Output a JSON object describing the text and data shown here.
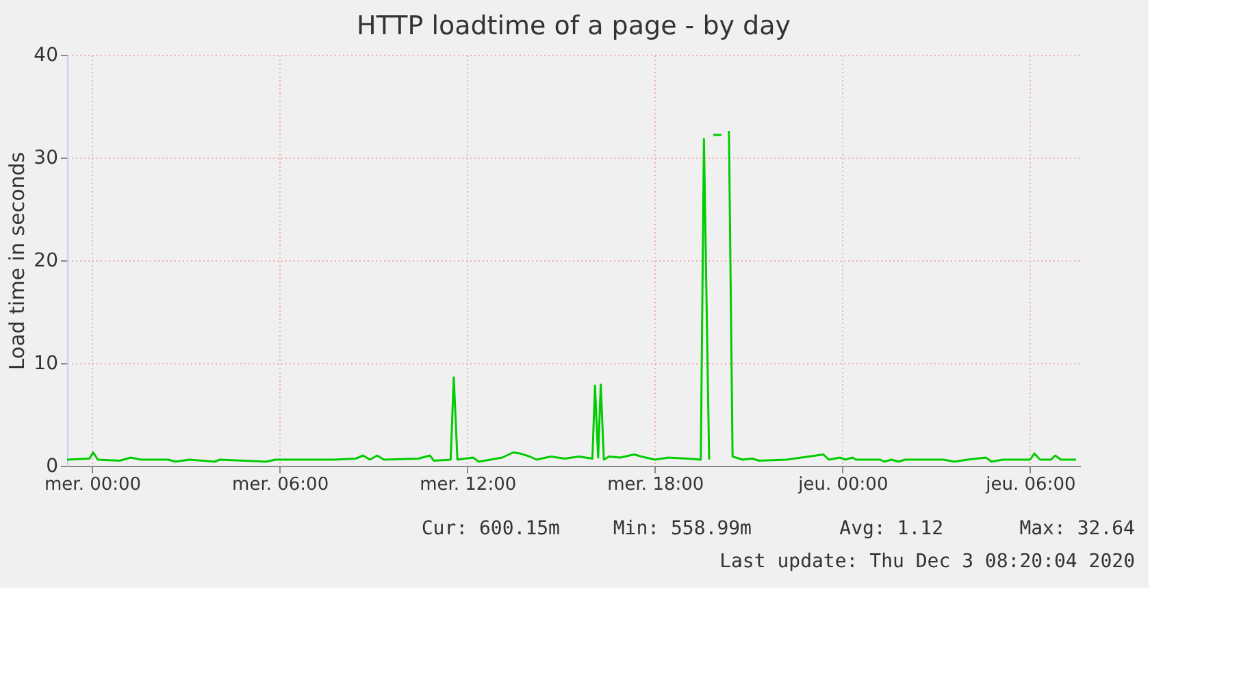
{
  "chart_data": {
    "type": "line",
    "title": "HTTP loadtime of a page - by day",
    "ylabel": "Load time in seconds",
    "x": [
      "2020-12-01T23:12",
      "2020-12-01T23:55",
      "2020-12-02T00:02",
      "2020-12-02T00:11",
      "2020-12-02T00:53",
      "2020-12-02T01:14",
      "2020-12-02T01:34",
      "2020-12-02T02:26",
      "2020-12-02T02:40",
      "2020-12-02T03:07",
      "2020-12-02T03:55",
      "2020-12-02T04:05",
      "2020-12-02T05:34",
      "2020-12-02T05:52",
      "2020-12-02T07:44",
      "2020-12-02T08:26",
      "2020-12-02T08:40",
      "2020-12-02T08:53",
      "2020-12-02T09:07",
      "2020-12-02T09:20",
      "2020-12-02T10:26",
      "2020-12-02T10:48",
      "2020-12-02T10:56",
      "2020-12-02T11:28",
      "2020-12-02T11:34",
      "2020-12-02T11:41",
      "2020-12-02T12:11",
      "2020-12-02T12:22",
      "2020-12-02T13:07",
      "2020-12-02T13:28",
      "2020-12-02T13:41",
      "2020-12-02T14:00",
      "2020-12-02T14:13",
      "2020-12-02T14:40",
      "2020-12-02T15:07",
      "2020-12-02T15:34",
      "2020-12-02T16:00",
      "2020-12-02T16:05",
      "2020-12-02T16:11",
      "2020-12-02T16:16",
      "2020-12-02T16:22",
      "2020-12-02T16:32",
      "2020-12-02T16:53",
      "2020-12-02T17:20",
      "2020-12-02T17:34",
      "2020-12-02T18:00",
      "2020-12-02T18:26",
      "2020-12-02T19:01",
      "2020-12-02T19:28",
      "2020-12-02T19:34",
      "2020-12-02T19:44",
      "2020-12-02T19:47",
      "2020-12-02T19:52",
      "2020-12-02T20:08",
      "2020-12-02T20:13",
      "2020-12-02T20:22",
      "2020-12-02T20:29",
      "2020-12-02T20:48",
      "2020-12-02T21:07",
      "2020-12-02T21:20",
      "2020-12-02T22:13",
      "2020-12-02T23:23",
      "2020-12-02T23:34",
      "2020-12-02T23:55",
      "2020-12-03T00:05",
      "2020-12-03T00:19",
      "2020-12-03T00:26",
      "2020-12-03T01:12",
      "2020-12-03T01:20",
      "2020-12-03T01:34",
      "2020-12-03T01:47",
      "2020-12-03T02:00",
      "2020-12-03T03:14",
      "2020-12-03T03:34",
      "2020-12-03T04:00",
      "2020-12-03T04:35",
      "2020-12-03T04:46",
      "2020-12-03T05:07",
      "2020-12-03T06:00",
      "2020-12-03T06:08",
      "2020-12-03T06:19",
      "2020-12-03T06:40",
      "2020-12-03T06:48",
      "2020-12-03T06:59",
      "2020-12-03T07:28"
    ],
    "series": [
      {
        "color": "#00cc00",
        "values": [
          0.6,
          0.7,
          1.3,
          0.6,
          0.5,
          0.8,
          0.6,
          0.6,
          0.4,
          0.6,
          0.4,
          0.6,
          0.4,
          0.6,
          0.6,
          0.7,
          1.0,
          0.6,
          1.0,
          0.6,
          0.7,
          1.0,
          0.5,
          0.6,
          8.6,
          0.6,
          0.8,
          0.4,
          0.8,
          1.3,
          1.2,
          0.9,
          0.6,
          0.9,
          0.7,
          0.9,
          0.7,
          7.8,
          0.8,
          7.9,
          0.6,
          0.9,
          0.8,
          1.1,
          0.9,
          0.6,
          0.8,
          0.7,
          0.6,
          31.8,
          0.6,
          null,
          32.2,
          32.2,
          null,
          32.6,
          0.9,
          0.6,
          0.7,
          0.5,
          0.6,
          1.1,
          0.6,
          0.8,
          0.6,
          0.8,
          0.6,
          0.6,
          0.4,
          0.6,
          0.4,
          0.6,
          0.6,
          0.4,
          0.6,
          0.8,
          0.4,
          0.6,
          0.6,
          1.2,
          0.6,
          0.6,
          1.0,
          0.6,
          0.6
        ]
      }
    ],
    "xlim": [
      "2020-12-01T23:12",
      "2020-12-03T07:36"
    ],
    "xticks": [
      {
        "value": "2020-12-02T00:00",
        "label": "mer. 00:00"
      },
      {
        "value": "2020-12-02T06:00",
        "label": "mer. 06:00"
      },
      {
        "value": "2020-12-02T12:00",
        "label": "mer. 12:00"
      },
      {
        "value": "2020-12-02T18:00",
        "label": "mer. 18:00"
      },
      {
        "value": "2020-12-03T00:00",
        "label": "jeu. 00:00"
      },
      {
        "value": "2020-12-03T06:00",
        "label": "jeu. 06:00"
      }
    ],
    "ylim": [
      0,
      40
    ],
    "yticks": [
      0,
      10,
      20,
      30,
      40
    ],
    "grid": true,
    "annotations": [
      "Cur: 600.15m",
      "Min: 558.99m",
      "Avg: 1.12",
      "Max: 32.64",
      "Last update: Thu Dec  3 08:20:04 2020"
    ]
  }
}
